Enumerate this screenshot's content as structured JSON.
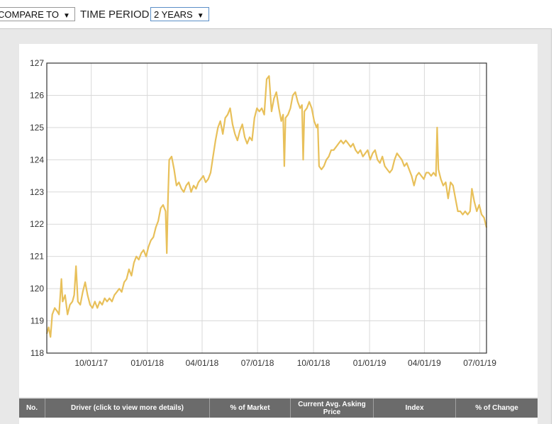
{
  "controls": {
    "compare_label": "COMPARE TO",
    "time_period_label": "TIME PERIOD",
    "time_period_value": "2 YEARS"
  },
  "table": {
    "headers": [
      "No.",
      "Driver (click to view more details)",
      "% of Market",
      "Current Avg. Asking Price",
      "Index",
      "% of Change"
    ]
  },
  "colors": {
    "line": "#e8c05a",
    "grid": "#d9d9d9",
    "header_bg": "#6b6b6b"
  },
  "chart_data": {
    "type": "line",
    "title": "",
    "xlabel": "",
    "ylabel": "",
    "ylim": [
      118,
      127
    ],
    "yticks": [
      118,
      119,
      120,
      121,
      122,
      123,
      124,
      125,
      126,
      127
    ],
    "xlim": [
      "2017-07-20",
      "2019-07-12"
    ],
    "xticks": [
      {
        "label": "10/01/17",
        "date": "2017-10-01"
      },
      {
        "label": "01/01/18",
        "date": "2018-01-01"
      },
      {
        "label": "04/01/18",
        "date": "2018-04-01"
      },
      {
        "label": "07/01/18",
        "date": "2018-07-01"
      },
      {
        "label": "10/01/18",
        "date": "2018-10-01"
      },
      {
        "label": "01/01/19",
        "date": "2019-01-01"
      },
      {
        "label": "04/01/19",
        "date": "2019-04-01"
      },
      {
        "label": "07/01/19",
        "date": "2019-07-01"
      }
    ],
    "grid": true,
    "series": [
      {
        "points": [
          [
            "2017-07-20",
            118.6
          ],
          [
            "2017-07-23",
            118.8
          ],
          [
            "2017-07-26",
            118.5
          ],
          [
            "2017-07-29",
            119.2
          ],
          [
            "2017-08-02",
            119.4
          ],
          [
            "2017-08-06",
            119.3
          ],
          [
            "2017-08-09",
            119.2
          ],
          [
            "2017-08-13",
            120.3
          ],
          [
            "2017-08-15",
            119.6
          ],
          [
            "2017-08-19",
            119.8
          ],
          [
            "2017-08-23",
            119.2
          ],
          [
            "2017-08-27",
            119.5
          ],
          [
            "2017-08-31",
            119.6
          ],
          [
            "2017-09-03",
            119.8
          ],
          [
            "2017-09-06",
            120.7
          ],
          [
            "2017-09-09",
            119.6
          ],
          [
            "2017-09-13",
            119.5
          ],
          [
            "2017-09-17",
            119.9
          ],
          [
            "2017-09-21",
            120.2
          ],
          [
            "2017-09-25",
            119.8
          ],
          [
            "2017-09-29",
            119.5
          ],
          [
            "2017-10-03",
            119.4
          ],
          [
            "2017-10-07",
            119.6
          ],
          [
            "2017-10-11",
            119.4
          ],
          [
            "2017-10-15",
            119.6
          ],
          [
            "2017-10-19",
            119.5
          ],
          [
            "2017-10-23",
            119.7
          ],
          [
            "2017-10-27",
            119.6
          ],
          [
            "2017-10-31",
            119.7
          ],
          [
            "2017-11-04",
            119.6
          ],
          [
            "2017-11-08",
            119.8
          ],
          [
            "2017-11-12",
            119.9
          ],
          [
            "2017-11-16",
            120.0
          ],
          [
            "2017-11-20",
            119.9
          ],
          [
            "2017-11-24",
            120.2
          ],
          [
            "2017-11-28",
            120.3
          ],
          [
            "2017-12-02",
            120.6
          ],
          [
            "2017-12-06",
            120.4
          ],
          [
            "2017-12-10",
            120.8
          ],
          [
            "2017-12-14",
            121.0
          ],
          [
            "2017-12-18",
            120.9
          ],
          [
            "2017-12-22",
            121.1
          ],
          [
            "2017-12-26",
            121.2
          ],
          [
            "2017-12-30",
            121.0
          ],
          [
            "2018-01-03",
            121.3
          ],
          [
            "2018-01-07",
            121.5
          ],
          [
            "2018-01-11",
            121.6
          ],
          [
            "2018-01-15",
            121.9
          ],
          [
            "2018-01-19",
            122.1
          ],
          [
            "2018-01-23",
            122.5
          ],
          [
            "2018-01-27",
            122.6
          ],
          [
            "2018-01-31",
            122.4
          ],
          [
            "2018-02-02",
            121.1
          ],
          [
            "2018-02-04",
            122.8
          ],
          [
            "2018-02-06",
            124.0
          ],
          [
            "2018-02-10",
            124.1
          ],
          [
            "2018-02-14",
            123.7
          ],
          [
            "2018-02-18",
            123.2
          ],
          [
            "2018-02-22",
            123.3
          ],
          [
            "2018-02-26",
            123.1
          ],
          [
            "2018-03-02",
            123.0
          ],
          [
            "2018-03-06",
            123.2
          ],
          [
            "2018-03-10",
            123.3
          ],
          [
            "2018-03-14",
            123.0
          ],
          [
            "2018-03-18",
            123.2
          ],
          [
            "2018-03-22",
            123.1
          ],
          [
            "2018-03-26",
            123.3
          ],
          [
            "2018-03-30",
            123.4
          ],
          [
            "2018-04-03",
            123.5
          ],
          [
            "2018-04-07",
            123.3
          ],
          [
            "2018-04-11",
            123.4
          ],
          [
            "2018-04-15",
            123.6
          ],
          [
            "2018-04-19",
            124.1
          ],
          [
            "2018-04-23",
            124.6
          ],
          [
            "2018-04-27",
            125.0
          ],
          [
            "2018-05-01",
            125.2
          ],
          [
            "2018-05-05",
            124.8
          ],
          [
            "2018-05-09",
            125.3
          ],
          [
            "2018-05-13",
            125.4
          ],
          [
            "2018-05-17",
            125.6
          ],
          [
            "2018-05-21",
            125.1
          ],
          [
            "2018-05-25",
            124.8
          ],
          [
            "2018-05-29",
            124.6
          ],
          [
            "2018-06-02",
            124.9
          ],
          [
            "2018-06-06",
            125.1
          ],
          [
            "2018-06-10",
            124.7
          ],
          [
            "2018-06-14",
            124.5
          ],
          [
            "2018-06-18",
            124.7
          ],
          [
            "2018-06-22",
            124.6
          ],
          [
            "2018-06-26",
            125.3
          ],
          [
            "2018-06-30",
            125.6
          ],
          [
            "2018-07-04",
            125.5
          ],
          [
            "2018-07-08",
            125.6
          ],
          [
            "2018-07-12",
            125.4
          ],
          [
            "2018-07-16",
            126.5
          ],
          [
            "2018-07-20",
            126.6
          ],
          [
            "2018-07-24",
            125.5
          ],
          [
            "2018-07-28",
            125.9
          ],
          [
            "2018-08-01",
            126.1
          ],
          [
            "2018-08-05",
            125.6
          ],
          [
            "2018-08-09",
            125.2
          ],
          [
            "2018-08-12",
            125.4
          ],
          [
            "2018-08-14",
            123.8
          ],
          [
            "2018-08-16",
            125.3
          ],
          [
            "2018-08-20",
            125.4
          ],
          [
            "2018-08-24",
            125.6
          ],
          [
            "2018-08-28",
            126.0
          ],
          [
            "2018-09-01",
            126.1
          ],
          [
            "2018-09-05",
            125.8
          ],
          [
            "2018-09-09",
            125.6
          ],
          [
            "2018-09-12",
            125.7
          ],
          [
            "2018-09-14",
            124.0
          ],
          [
            "2018-09-16",
            125.5
          ],
          [
            "2018-09-20",
            125.6
          ],
          [
            "2018-09-24",
            125.8
          ],
          [
            "2018-09-28",
            125.6
          ],
          [
            "2018-10-02",
            125.2
          ],
          [
            "2018-10-06",
            125.0
          ],
          [
            "2018-10-08",
            125.1
          ],
          [
            "2018-10-10",
            123.8
          ],
          [
            "2018-10-14",
            123.7
          ],
          [
            "2018-10-18",
            123.8
          ],
          [
            "2018-10-22",
            124.0
          ],
          [
            "2018-10-26",
            124.1
          ],
          [
            "2018-10-30",
            124.3
          ],
          [
            "2018-11-03",
            124.3
          ],
          [
            "2018-11-07",
            124.4
          ],
          [
            "2018-11-11",
            124.5
          ],
          [
            "2018-11-15",
            124.6
          ],
          [
            "2018-11-19",
            124.5
          ],
          [
            "2018-11-23",
            124.6
          ],
          [
            "2018-11-27",
            124.5
          ],
          [
            "2018-12-01",
            124.4
          ],
          [
            "2018-12-05",
            124.5
          ],
          [
            "2018-12-09",
            124.3
          ],
          [
            "2018-12-13",
            124.2
          ],
          [
            "2018-12-17",
            124.3
          ],
          [
            "2018-12-21",
            124.1
          ],
          [
            "2018-12-25",
            124.2
          ],
          [
            "2018-12-29",
            124.3
          ],
          [
            "2019-01-02",
            124.0
          ],
          [
            "2019-01-06",
            124.2
          ],
          [
            "2019-01-10",
            124.3
          ],
          [
            "2019-01-14",
            124.0
          ],
          [
            "2019-01-18",
            123.9
          ],
          [
            "2019-01-22",
            124.1
          ],
          [
            "2019-01-26",
            123.8
          ],
          [
            "2019-01-30",
            123.7
          ],
          [
            "2019-02-03",
            123.6
          ],
          [
            "2019-02-07",
            123.7
          ],
          [
            "2019-02-11",
            124.0
          ],
          [
            "2019-02-15",
            124.2
          ],
          [
            "2019-02-19",
            124.1
          ],
          [
            "2019-02-23",
            124.0
          ],
          [
            "2019-02-27",
            123.8
          ],
          [
            "2019-03-03",
            123.9
          ],
          [
            "2019-03-07",
            123.7
          ],
          [
            "2019-03-11",
            123.5
          ],
          [
            "2019-03-15",
            123.2
          ],
          [
            "2019-03-19",
            123.5
          ],
          [
            "2019-03-23",
            123.6
          ],
          [
            "2019-03-27",
            123.5
          ],
          [
            "2019-03-31",
            123.4
          ],
          [
            "2019-04-04",
            123.6
          ],
          [
            "2019-04-08",
            123.6
          ],
          [
            "2019-04-12",
            123.5
          ],
          [
            "2019-04-16",
            123.6
          ],
          [
            "2019-04-20",
            123.5
          ],
          [
            "2019-04-22",
            125.0
          ],
          [
            "2019-04-24",
            123.7
          ],
          [
            "2019-04-28",
            123.4
          ],
          [
            "2019-05-02",
            123.2
          ],
          [
            "2019-05-06",
            123.3
          ],
          [
            "2019-05-10",
            122.8
          ],
          [
            "2019-05-14",
            123.3
          ],
          [
            "2019-05-18",
            123.2
          ],
          [
            "2019-05-22",
            122.8
          ],
          [
            "2019-05-26",
            122.4
          ],
          [
            "2019-05-30",
            122.4
          ],
          [
            "2019-06-03",
            122.3
          ],
          [
            "2019-06-07",
            122.4
          ],
          [
            "2019-06-11",
            122.3
          ],
          [
            "2019-06-15",
            122.4
          ],
          [
            "2019-06-18",
            123.1
          ],
          [
            "2019-06-22",
            122.7
          ],
          [
            "2019-06-26",
            122.4
          ],
          [
            "2019-06-30",
            122.6
          ],
          [
            "2019-07-04",
            122.3
          ],
          [
            "2019-07-08",
            122.2
          ],
          [
            "2019-07-12",
            121.9
          ]
        ]
      }
    ]
  }
}
